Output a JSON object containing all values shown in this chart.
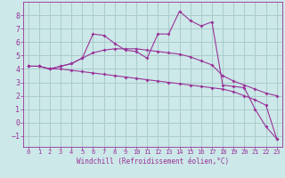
{
  "xlabel": "Windchill (Refroidissement éolien,°C)",
  "background_color": "#cce8e8",
  "grid_color": "#aacccc",
  "line_color": "#993399",
  "x": [
    0,
    1,
    2,
    3,
    4,
    5,
    6,
    7,
    8,
    9,
    10,
    11,
    12,
    13,
    14,
    15,
    16,
    17,
    18,
    19,
    20,
    21,
    22,
    23
  ],
  "line1": [
    4.2,
    4.2,
    4.0,
    4.2,
    4.4,
    4.8,
    6.6,
    6.5,
    5.9,
    5.4,
    5.3,
    4.8,
    6.6,
    6.6,
    8.3,
    7.6,
    7.2,
    7.5,
    2.8,
    2.7,
    2.6,
    1.0,
    -0.3,
    -1.2
  ],
  "line2": [
    4.2,
    4.2,
    4.0,
    4.2,
    4.4,
    4.8,
    5.2,
    5.4,
    5.5,
    5.5,
    5.5,
    5.4,
    5.3,
    5.2,
    5.1,
    4.9,
    4.6,
    4.3,
    3.5,
    3.1,
    2.8,
    2.5,
    2.2,
    2.0
  ],
  "line3": [
    4.2,
    4.2,
    4.0,
    4.0,
    3.9,
    3.8,
    3.7,
    3.6,
    3.5,
    3.4,
    3.3,
    3.2,
    3.1,
    3.0,
    2.9,
    2.8,
    2.7,
    2.6,
    2.5,
    2.3,
    2.0,
    1.7,
    1.3,
    -1.2
  ],
  "ylim": [
    -1.8,
    9.0
  ],
  "xlim": [
    -0.5,
    23.5
  ],
  "yticks": [
    -1,
    0,
    1,
    2,
    3,
    4,
    5,
    6,
    7,
    8
  ],
  "xticks": [
    0,
    1,
    2,
    3,
    4,
    5,
    6,
    7,
    8,
    9,
    10,
    11,
    12,
    13,
    14,
    15,
    16,
    17,
    18,
    19,
    20,
    21,
    22,
    23
  ],
  "xlabel_fontsize": 5.5,
  "ytick_fontsize": 6.0,
  "xtick_fontsize": 5.0
}
